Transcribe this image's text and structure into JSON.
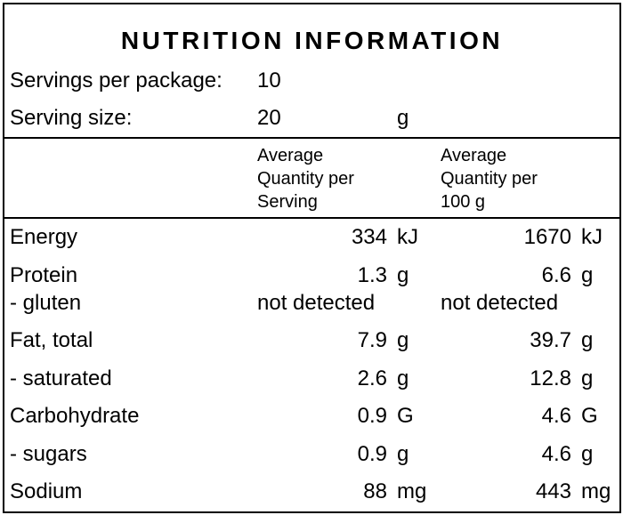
{
  "title": "NUTRITION INFORMATION",
  "servings_per_package": {
    "label": "Servings per package:",
    "value": "10"
  },
  "serving_size": {
    "label": "Serving size:",
    "value": "20",
    "unit": "g"
  },
  "columns": [
    {
      "lines": [
        "Average",
        "Quantity per",
        "Serving"
      ]
    },
    {
      "lines": [
        "Average",
        "Quantity per",
        "100 g"
      ]
    }
  ],
  "rows": [
    {
      "name": "Energy",
      "serving": {
        "value": "334",
        "unit": "kJ"
      },
      "per_100g": {
        "value": "1670",
        "unit": "kJ"
      }
    },
    {
      "name": "Protein",
      "serving": {
        "value": "1.3",
        "unit": "g"
      },
      "per_100g": {
        "value": "6.6",
        "unit": "g"
      }
    },
    {
      "name": "- gluten",
      "serving": {
        "text": "not detected"
      },
      "per_100g": {
        "text": "not detected"
      }
    },
    {
      "name": "Fat, total",
      "serving": {
        "value": "7.9",
        "unit": "g"
      },
      "per_100g": {
        "value": "39.7",
        "unit": "g"
      }
    },
    {
      "name": "- saturated",
      "serving": {
        "value": "2.6",
        "unit": "g"
      },
      "per_100g": {
        "value": "12.8",
        "unit": "g"
      }
    },
    {
      "name": "Carbohydrate",
      "serving": {
        "value": "0.9",
        "unit": "G"
      },
      "per_100g": {
        "value": "4.6",
        "unit": "G"
      }
    },
    {
      "name": "- sugars",
      "serving": {
        "value": "0.9",
        "unit": "g"
      },
      "per_100g": {
        "value": "4.6",
        "unit": "g"
      }
    },
    {
      "name": "Sodium",
      "serving": {
        "value": "88",
        "unit": "mg"
      },
      "per_100g": {
        "value": "443",
        "unit": "mg"
      }
    }
  ]
}
